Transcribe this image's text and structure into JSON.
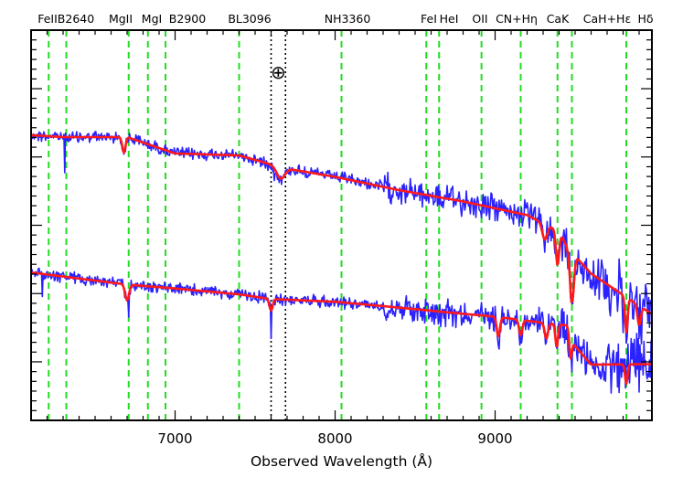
{
  "chart_data": {
    "type": "line",
    "title": "",
    "xlabel": "Observed Wavelength (Å)",
    "ylabel": "",
    "xlim": [
      6100,
      9980
    ],
    "ylim": [
      0,
      1
    ],
    "x_ticks": [
      7000,
      8000,
      9000
    ],
    "x_tick_labels": [
      "7000",
      "8000",
      "9000"
    ],
    "y_tick_labels_shown": false,
    "grid": false,
    "telluric_symbol": "⊕",
    "telluric_lines": [
      7600,
      7690
    ],
    "emission_lines": [
      {
        "label": "FeII",
        "x": 6210
      },
      {
        "label": "B2640",
        "x": 6320
      },
      {
        "label": "MgII",
        "x": 6710
      },
      {
        "label": "MgI",
        "x": 6830
      },
      {
        "label": "B2900",
        "x": 6940
      },
      {
        "label": "BL3096",
        "x": 7400
      },
      {
        "label": "NH3360",
        "x": 8040
      },
      {
        "label": "FeI",
        "x": 8570
      },
      {
        "label": "HeI",
        "x": 8650
      },
      {
        "label": "OII",
        "x": 8915
      },
      {
        "label": "CN+Hη",
        "x": 9160
      },
      {
        "label": "CaK",
        "x": 9390
      },
      {
        "label": "CaH+Hε",
        "x": 9480
      },
      {
        "label": "Hδ",
        "x": 9820
      }
    ],
    "series": [
      {
        "color": "#2a22ff",
        "offset": 0.0,
        "noisy": true,
        "points": [
          [
            6100,
            0.269
          ],
          [
            6300,
            0.274
          ],
          [
            6700,
            0.274
          ],
          [
            7000,
            0.316
          ],
          [
            7400,
            0.321
          ],
          [
            7600,
            0.344
          ],
          [
            7700,
            0.355
          ],
          [
            8000,
            0.376
          ],
          [
            8400,
            0.41
          ],
          [
            8800,
            0.439
          ],
          [
            9200,
            0.474
          ],
          [
            9400,
            0.515
          ],
          [
            9450,
            0.556
          ],
          [
            9600,
            0.624
          ],
          [
            9980,
            0.728
          ]
        ],
        "features": [
          [
            6680,
            -0.04,
            10
          ],
          [
            7660,
            -0.03,
            25
          ],
          [
            9310,
            -0.04,
            15
          ],
          [
            9390,
            -0.09,
            10
          ],
          [
            9480,
            -0.13,
            12
          ],
          [
            9820,
            -0.09,
            8
          ],
          [
            9900,
            -0.05,
            10
          ]
        ],
        "spikes": [
          [
            6310,
            -0.08
          ],
          [
            7620,
            -0.04
          ],
          [
            8670,
            -0.03
          ],
          [
            9420,
            -0.09
          ],
          [
            9800,
            -0.11
          ]
        ]
      },
      {
        "color": "#ff1a1a",
        "offset": 0.0,
        "noisy": false,
        "points": [
          [
            6100,
            0.269
          ],
          [
            6300,
            0.274
          ],
          [
            6700,
            0.274
          ],
          [
            7000,
            0.316
          ],
          [
            7400,
            0.321
          ],
          [
            7600,
            0.344
          ],
          [
            7700,
            0.355
          ],
          [
            8000,
            0.376
          ],
          [
            8400,
            0.41
          ],
          [
            8800,
            0.439
          ],
          [
            9200,
            0.474
          ],
          [
            9400,
            0.515
          ],
          [
            9450,
            0.556
          ],
          [
            9600,
            0.624
          ],
          [
            9980,
            0.728
          ]
        ],
        "features": [
          [
            6680,
            -0.04,
            10
          ],
          [
            7660,
            -0.03,
            25
          ],
          [
            9310,
            -0.04,
            15
          ],
          [
            9390,
            -0.09,
            10
          ],
          [
            9480,
            -0.13,
            12
          ],
          [
            9820,
            -0.09,
            8
          ],
          [
            9900,
            -0.05,
            10
          ]
        ]
      },
      {
        "color": "#2a22ff",
        "offset": 0.0,
        "noisy": true,
        "points": [
          [
            6100,
            0.621
          ],
          [
            6700,
            0.652
          ],
          [
            7000,
            0.662
          ],
          [
            7400,
            0.677
          ],
          [
            7600,
            0.689
          ],
          [
            8000,
            0.696
          ],
          [
            8400,
            0.711
          ],
          [
            8800,
            0.727
          ],
          [
            9000,
            0.734
          ],
          [
            9300,
            0.75
          ],
          [
            9460,
            0.757
          ],
          [
            9480,
            0.8
          ],
          [
            9600,
            0.857
          ],
          [
            9980,
            0.856
          ]
        ],
        "features": [
          [
            6700,
            -0.04,
            12
          ],
          [
            7600,
            -0.03,
            10
          ],
          [
            9020,
            -0.05,
            10
          ],
          [
            9160,
            -0.04,
            10
          ],
          [
            9320,
            -0.04,
            10
          ],
          [
            9385,
            -0.06,
            8
          ],
          [
            9470,
            -0.06,
            8
          ],
          [
            9820,
            -0.05,
            8
          ]
        ],
        "spikes": [
          [
            6170,
            -0.05
          ],
          [
            6710,
            -0.04
          ],
          [
            7600,
            -0.06
          ],
          [
            9480,
            -0.06
          ],
          [
            9800,
            -0.05
          ]
        ]
      },
      {
        "color": "#ff1a1a",
        "offset": 0.0,
        "noisy": false,
        "points": [
          [
            6100,
            0.621
          ],
          [
            6700,
            0.652
          ],
          [
            7000,
            0.662
          ],
          [
            7400,
            0.677
          ],
          [
            7600,
            0.689
          ],
          [
            8000,
            0.696
          ],
          [
            8400,
            0.711
          ],
          [
            8800,
            0.727
          ],
          [
            9000,
            0.734
          ],
          [
            9300,
            0.75
          ],
          [
            9460,
            0.757
          ],
          [
            9480,
            0.8
          ],
          [
            9600,
            0.857
          ],
          [
            9980,
            0.856
          ]
        ],
        "features": [
          [
            6700,
            -0.04,
            12
          ],
          [
            7600,
            -0.03,
            10
          ],
          [
            9020,
            -0.05,
            10
          ],
          [
            9160,
            -0.04,
            10
          ],
          [
            9320,
            -0.04,
            10
          ],
          [
            9385,
            -0.06,
            8
          ],
          [
            9470,
            -0.06,
            8
          ],
          [
            9820,
            -0.05,
            8
          ]
        ]
      }
    ]
  }
}
